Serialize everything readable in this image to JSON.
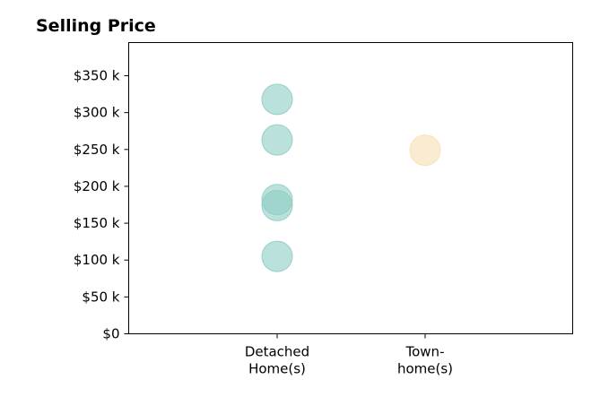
{
  "chart_data": {
    "type": "scatter",
    "title": "Selling Price",
    "xlabel": "",
    "ylabel": "",
    "categories": [
      [
        "Detached",
        "Home(s)"
      ],
      [
        "Town-",
        "home(s)"
      ]
    ],
    "ylim": [
      0,
      395000
    ],
    "y_ticks": [
      0,
      50000,
      100000,
      150000,
      200000,
      250000,
      300000,
      350000
    ],
    "y_tick_labels": [
      "$0",
      "$50 k",
      "$100 k",
      "$150 k",
      "$200 k",
      "$250 k",
      "$300 k",
      "$350 k"
    ],
    "series": [
      {
        "category_index": 0,
        "color": "#8ecdc4",
        "values": [
          318000,
          263000,
          182000,
          174000,
          105000
        ]
      },
      {
        "category_index": 1,
        "color": "#f6dfb0",
        "values": [
          249000
        ]
      }
    ],
    "grid": false,
    "legend": "none"
  }
}
